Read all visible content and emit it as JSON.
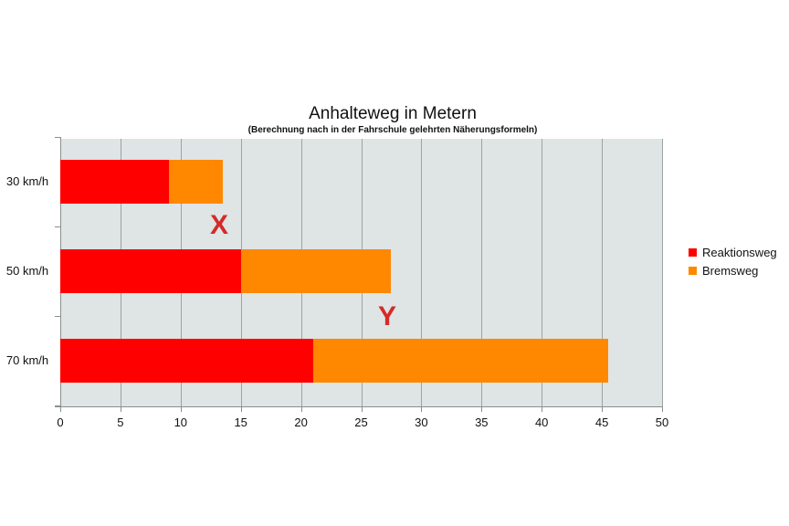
{
  "chart_data": {
    "type": "bar",
    "orientation": "horizontal",
    "stacked": true,
    "title": "Anhalteweg in Metern",
    "subtitle": "(Berechnung nach in der Fahrschule gelehrten Näherungsformeln)",
    "categories": [
      "30 km/h",
      "50 km/h",
      "70 km/h"
    ],
    "series": [
      {
        "name": "Reaktionsweg",
        "color": "#ff0000",
        "values": [
          9,
          15,
          21
        ]
      },
      {
        "name": "Bremsweg",
        "color": "#ff8800",
        "values": [
          4.5,
          12.5,
          24.5
        ]
      }
    ],
    "xlabel": "",
    "ylabel": "",
    "xlim": [
      0,
      50
    ],
    "xticks": [
      "0",
      "5",
      "10",
      "15",
      "20",
      "25",
      "30",
      "35",
      "40",
      "45",
      "50"
    ],
    "grid": true,
    "legend_position": "right",
    "annotations": [
      {
        "text": "X",
        "near": "30 km/h Bremsweg end"
      },
      {
        "text": "Y",
        "near": "50 km/h Bremsweg end"
      }
    ]
  },
  "colors": {
    "reaktionsweg": "#ff0000",
    "bremsweg": "#ff8800",
    "plot_background": "#dfe4e4",
    "annotation": "#d42a2a"
  }
}
